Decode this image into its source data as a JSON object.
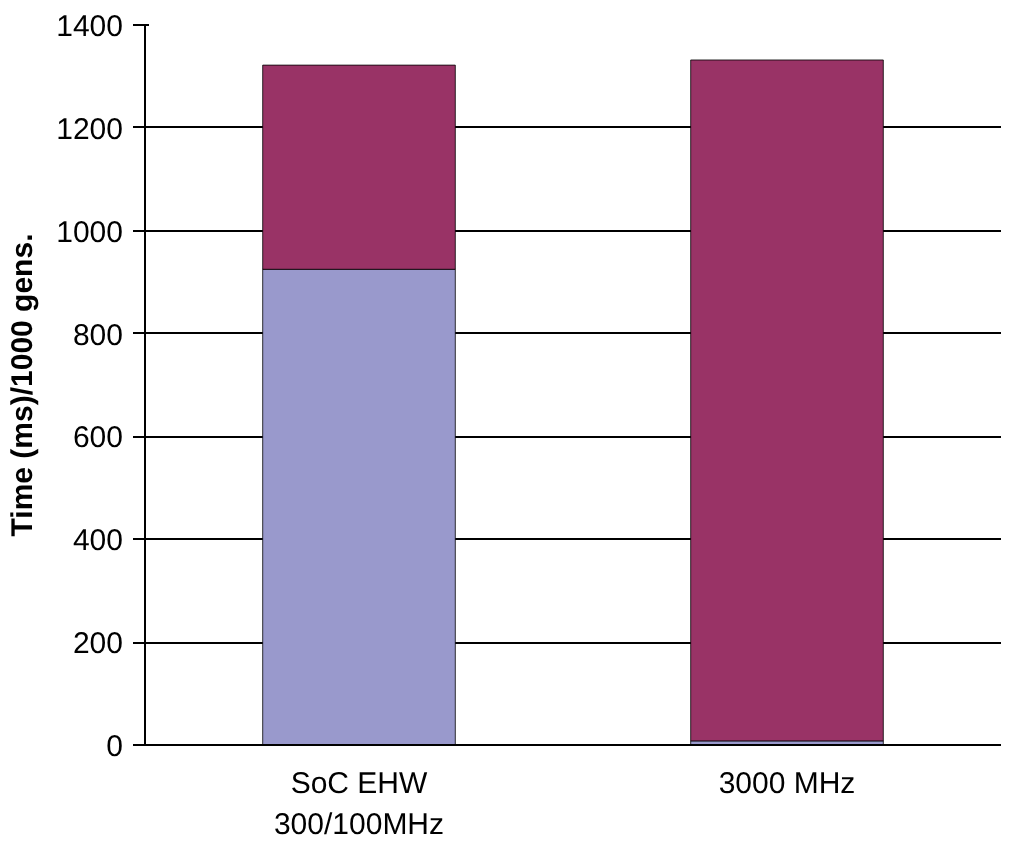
{
  "chart_data": {
    "type": "bar",
    "stacked": true,
    "ylabel": "Time (ms)/1000 gens.",
    "categories": [
      "SoC EHW\n300/100MHz",
      "3000 MHz"
    ],
    "series": [
      {
        "color": "#9999cc",
        "values": [
          925,
          8
        ]
      },
      {
        "color": "#993366",
        "values": [
          397,
          1324
        ]
      }
    ],
    "ylim": [
      0,
      1400
    ],
    "yticks": [
      0,
      200,
      400,
      600,
      800,
      1000,
      1200,
      1400
    ],
    "grid": "y"
  }
}
